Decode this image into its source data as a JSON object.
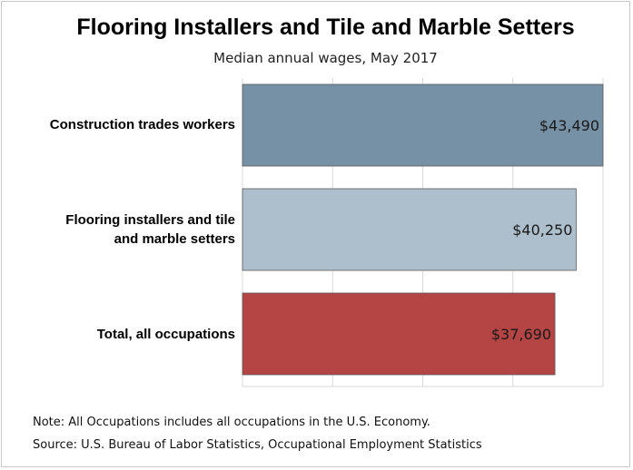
{
  "chart_data": {
    "type": "bar",
    "orientation": "horizontal",
    "title": "Flooring Installers and Tile and Marble Setters",
    "subtitle": "Median annual wages, May 2017",
    "categories": [
      "Construction trades workers",
      "Flooring installers and tile and marble setters",
      "Total, all occupations"
    ],
    "category_lines": [
      [
        "Construction trades workers"
      ],
      [
        "Flooring installers and tile",
        "and marble setters"
      ],
      [
        "Total, all occupations"
      ]
    ],
    "values": [
      43490,
      40250,
      37690
    ],
    "value_labels": [
      "$43,490",
      "$40,250",
      "$37,690"
    ],
    "bar_colors": [
      "#7690a5",
      "#adbfcc",
      "#b54444"
    ],
    "xlim": [
      0,
      43490
    ],
    "grid": true,
    "xlabel": "",
    "ylabel": ""
  },
  "notes": {
    "note": "Note: All Occupations includes all occupations in the U.S. Economy.",
    "source": "Source: U.S. Bureau of Labor Statistics, Occupational Employment Statistics"
  }
}
